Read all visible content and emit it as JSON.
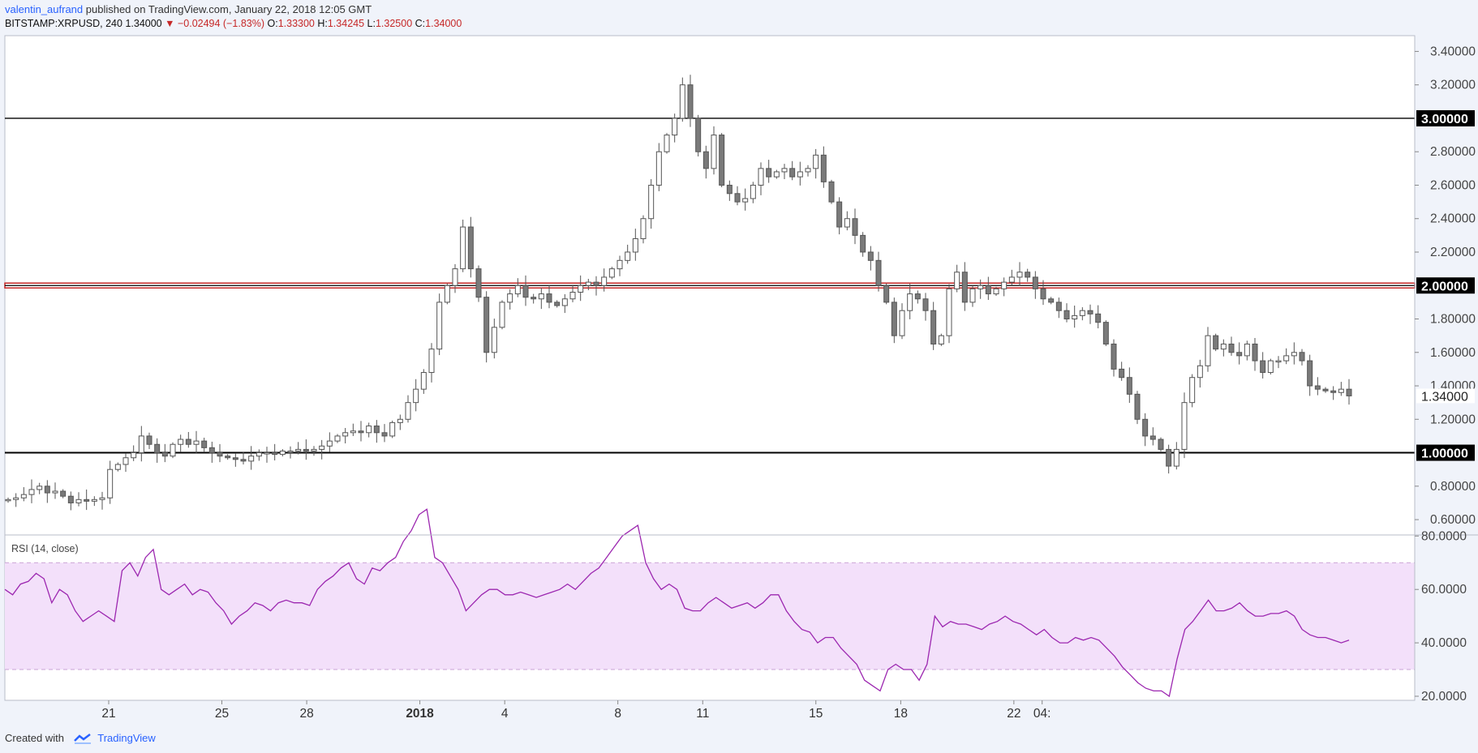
{
  "header": {
    "author": "valentin_aufrand",
    "published_text": " published on TradingView.com, January 22, 2018 12:05 GMT"
  },
  "ohlc": {
    "symbol": "BITSTAMP:XRPUSD, 240",
    "price": "1.34000",
    "change": "−0.02494 (−1.83%)",
    "open_label": "O:",
    "open": "1.33300",
    "high_label": "H:",
    "high": "1.34245",
    "low_label": "L:",
    "low": "1.32500",
    "close_label": "C:",
    "close": "1.34000"
  },
  "footer": {
    "created_with": "Created with",
    "brand": "TradingView"
  },
  "colors": {
    "up_candle": "#ffffff",
    "down_candle": "#7a7a7a",
    "wick": "#555555",
    "rsi_line": "#9c27b0",
    "rsi_band": "#f3e0fa",
    "support_line": "#000000",
    "resistance_highlight": "#c62828",
    "background": "#f0f3fa",
    "plot_bg": "#ffffff"
  },
  "chart_data": [
    {
      "type": "candlestick",
      "title": "BITSTAMP:XRPUSD, 240",
      "ylim": [
        0.5,
        3.5
      ],
      "price_axis_ticks": [
        "3.40000",
        "3.20000",
        "2.80000",
        "2.60000",
        "2.40000",
        "2.20000",
        "1.80000",
        "1.60000",
        "1.40000",
        "1.20000",
        "0.80000",
        "0.60000"
      ],
      "horizontal_levels": [
        {
          "value": 3.0,
          "label": "3.00000",
          "color": "#000000"
        },
        {
          "value": 2.0,
          "label": "2.00000",
          "color": "#c62828"
        },
        {
          "value": 1.0,
          "label": "1.00000",
          "color": "#000000"
        }
      ],
      "last_price_label": "1.34000",
      "last_price": 1.34,
      "x_tick_labels": [
        {
          "label": "21",
          "date": "2017-12-21"
        },
        {
          "label": "25",
          "date": "2017-12-25"
        },
        {
          "label": "28",
          "date": "2017-12-28"
        },
        {
          "label": "2018",
          "date": "2018-01-01"
        },
        {
          "label": "4",
          "date": "2018-01-04"
        },
        {
          "label": "8",
          "date": "2018-01-08"
        },
        {
          "label": "11",
          "date": "2018-01-11"
        },
        {
          "label": "15",
          "date": "2018-01-15"
        },
        {
          "label": "18",
          "date": "2018-01-18"
        },
        {
          "label": "22",
          "date": "2018-01-22"
        },
        {
          "label": "04:",
          "date": "2018-01-23"
        }
      ],
      "close_series": [
        0.72,
        0.73,
        0.75,
        0.78,
        0.8,
        0.76,
        0.77,
        0.74,
        0.7,
        0.72,
        0.71,
        0.72,
        0.73,
        0.9,
        0.93,
        0.97,
        1.0,
        1.1,
        1.05,
        1.0,
        0.98,
        1.05,
        1.08,
        1.05,
        1.07,
        1.03,
        1.0,
        0.98,
        0.97,
        0.96,
        0.95,
        0.98,
        1.0,
        1.0,
        0.99,
        1.01,
        1.01,
        1.02,
        1.01,
        1.02,
        1.04,
        1.07,
        1.1,
        1.12,
        1.13,
        1.12,
        1.16,
        1.12,
        1.1,
        1.18,
        1.2,
        1.3,
        1.38,
        1.48,
        1.62,
        1.9,
        2.0,
        2.1,
        2.35,
        2.1,
        1.93,
        1.6,
        1.75,
        1.9,
        1.95,
        2.0,
        1.93,
        1.92,
        1.95,
        1.9,
        1.88,
        1.92,
        1.96,
        2.0,
        2.02,
        2.0,
        2.05,
        2.1,
        2.15,
        2.2,
        2.28,
        2.4,
        2.6,
        2.8,
        2.9,
        3.0,
        3.2,
        3.0,
        2.8,
        2.7,
        2.9,
        2.6,
        2.55,
        2.5,
        2.52,
        2.6,
        2.7,
        2.65,
        2.68,
        2.7,
        2.65,
        2.68,
        2.7,
        2.78,
        2.62,
        2.5,
        2.35,
        2.4,
        2.3,
        2.2,
        2.15,
        2.0,
        1.9,
        1.7,
        1.85,
        1.95,
        1.92,
        1.85,
        1.65,
        1.7,
        1.98,
        2.08,
        1.9,
        1.98,
        2.0,
        1.95,
        1.98,
        2.02,
        2.05,
        2.08,
        2.05,
        1.98,
        1.92,
        1.9,
        1.85,
        1.8,
        1.82,
        1.85,
        1.83,
        1.78,
        1.65,
        1.5,
        1.45,
        1.35,
        1.2,
        1.1,
        1.08,
        1.02,
        0.92,
        1.02,
        1.3,
        1.45,
        1.52,
        1.7,
        1.62,
        1.65,
        1.6,
        1.58,
        1.65,
        1.55,
        1.48,
        1.55,
        1.55,
        1.58,
        1.6,
        1.55,
        1.4,
        1.38,
        1.37,
        1.36,
        1.38,
        1.34
      ]
    },
    {
      "type": "line",
      "title": "RSI (14, close)",
      "ylim": [
        15,
        95
      ],
      "y_ticks": [
        "80.0000",
        "60.0000",
        "40.0000",
        "20.0000"
      ],
      "band": [
        30,
        70
      ],
      "values": [
        60,
        58,
        62,
        63,
        66,
        64,
        55,
        60,
        58,
        52,
        48,
        50,
        52,
        50,
        48,
        67,
        70,
        65,
        72,
        75,
        60,
        58,
        60,
        62,
        58,
        60,
        59,
        55,
        52,
        47,
        50,
        52,
        55,
        54,
        52,
        55,
        56,
        55,
        55,
        54,
        60,
        63,
        65,
        68,
        70,
        64,
        62,
        68,
        67,
        70,
        72,
        78,
        82,
        88,
        90,
        72,
        70,
        65,
        60,
        52,
        55,
        58,
        60,
        60,
        58,
        58,
        59,
        58,
        57,
        58,
        59,
        60,
        62,
        60,
        63,
        66,
        68,
        72,
        76,
        80,
        82,
        84,
        70,
        64,
        60,
        62,
        60,
        53,
        52,
        52,
        55,
        57,
        55,
        53,
        54,
        55,
        53,
        55,
        58,
        58,
        52,
        48,
        45,
        44,
        40,
        42,
        42,
        38,
        35,
        32,
        26,
        24,
        22,
        30,
        32,
        30,
        30,
        26,
        32,
        50,
        46,
        48,
        47,
        47,
        46,
        45,
        47,
        48,
        50,
        48,
        47,
        45,
        43,
        45,
        42,
        40,
        40,
        42,
        41,
        42,
        41,
        38,
        35,
        31,
        28,
        25,
        23,
        22,
        22,
        20,
        34,
        45,
        48,
        52,
        56,
        52,
        52,
        53,
        55,
        52,
        50,
        50,
        51,
        51,
        52,
        50,
        45,
        43,
        42,
        42,
        41,
        40,
        41
      ]
    }
  ]
}
